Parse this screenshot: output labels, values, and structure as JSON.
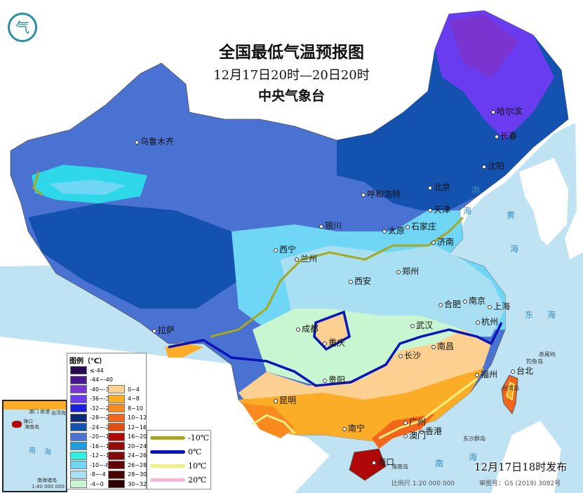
{
  "header": {
    "title": "全国最低气温预报图",
    "period": "12月17日20时—20日20时",
    "agency": "中央气象台",
    "logo_icon": "cma-logo-icon"
  },
  "cities": [
    "乌鲁木齐",
    "哈尔滨",
    "长春",
    "沈阳",
    "北京",
    "天津",
    "呼和浩特",
    "石家庄",
    "太原",
    "济南",
    "银川",
    "西宁",
    "兰州",
    "郑州",
    "西安",
    "合肥",
    "南京",
    "上海",
    "杭州",
    "武汉",
    "成都",
    "重庆",
    "拉萨",
    "长沙",
    "南昌",
    "福州",
    "台北",
    "贵阳",
    "昆明",
    "南宁",
    "广州",
    "香港",
    "澳门",
    "海口"
  ],
  "seas": [
    "渤",
    "海",
    "黄",
    "海",
    "东",
    "海",
    "南",
    "海"
  ],
  "islands": [
    "海南岛",
    "台湾岛",
    "钓鱼岛",
    "赤尾屿",
    "东沙群岛"
  ],
  "legend": {
    "title": "图例（℃）",
    "cold": [
      {
        "label": "≤-44",
        "color": "#2a0a52"
      },
      {
        "label": "-44~-40",
        "color": "#4a1590"
      },
      {
        "label": "-40~-36",
        "color": "#7a35d0"
      },
      {
        "label": "-36~-32",
        "color": "#6a3cf0"
      },
      {
        "label": "-32~-28",
        "color": "#1d1fe0"
      },
      {
        "label": "-28~-24",
        "color": "#0c2a78"
      },
      {
        "label": "-24~-20",
        "color": "#1452b0"
      },
      {
        "label": "-20~-16",
        "color": "#4a72d2"
      },
      {
        "label": "-16~-12",
        "color": "#1da0e0"
      },
      {
        "label": "-12~-10",
        "color": "#2ef2e0"
      },
      {
        "label": "-10~-8",
        "color": "#6fd6f6"
      },
      {
        "label": "-8~-4",
        "color": "#a8dff2"
      },
      {
        "label": "-4~0",
        "color": "#c8f6d0"
      }
    ],
    "warm": [
      {
        "label": "0~4",
        "color": "#fcd090"
      },
      {
        "label": "4~8",
        "color": "#fbad28"
      },
      {
        "label": "8~10",
        "color": "#f98a20"
      },
      {
        "label": "10~12",
        "color": "#f4661c"
      },
      {
        "label": "12~16",
        "color": "#e05012"
      },
      {
        "label": "16~20",
        "color": "#b00808"
      },
      {
        "label": "20~24",
        "color": "#960a0a"
      },
      {
        "label": "24~26",
        "color": "#800808"
      },
      {
        "label": "26~28",
        "color": "#660404"
      },
      {
        "label": "28~30",
        "color": "#4a0202"
      },
      {
        "label": "30~32",
        "color": "#300000"
      }
    ],
    "isotherms": [
      {
        "label": "-10℃",
        "color": "#a8a820"
      },
      {
        "label": "0℃",
        "color": "#0a14b8"
      },
      {
        "label": "10℃",
        "color": "#f0f080"
      },
      {
        "label": "20℃",
        "color": "#f4b8d8"
      }
    ]
  },
  "inset": {
    "labels": [
      "澳门",
      "香港",
      "台湾岛",
      "海口",
      "海南岛",
      "南",
      "海",
      "南海诸岛"
    ],
    "scale": "1:40 000 000"
  },
  "footer": {
    "issued": "12月17日18时发布",
    "scale": "比例尺 1:20 000 000",
    "approval": "审图号：GS (2019) 3082号"
  }
}
